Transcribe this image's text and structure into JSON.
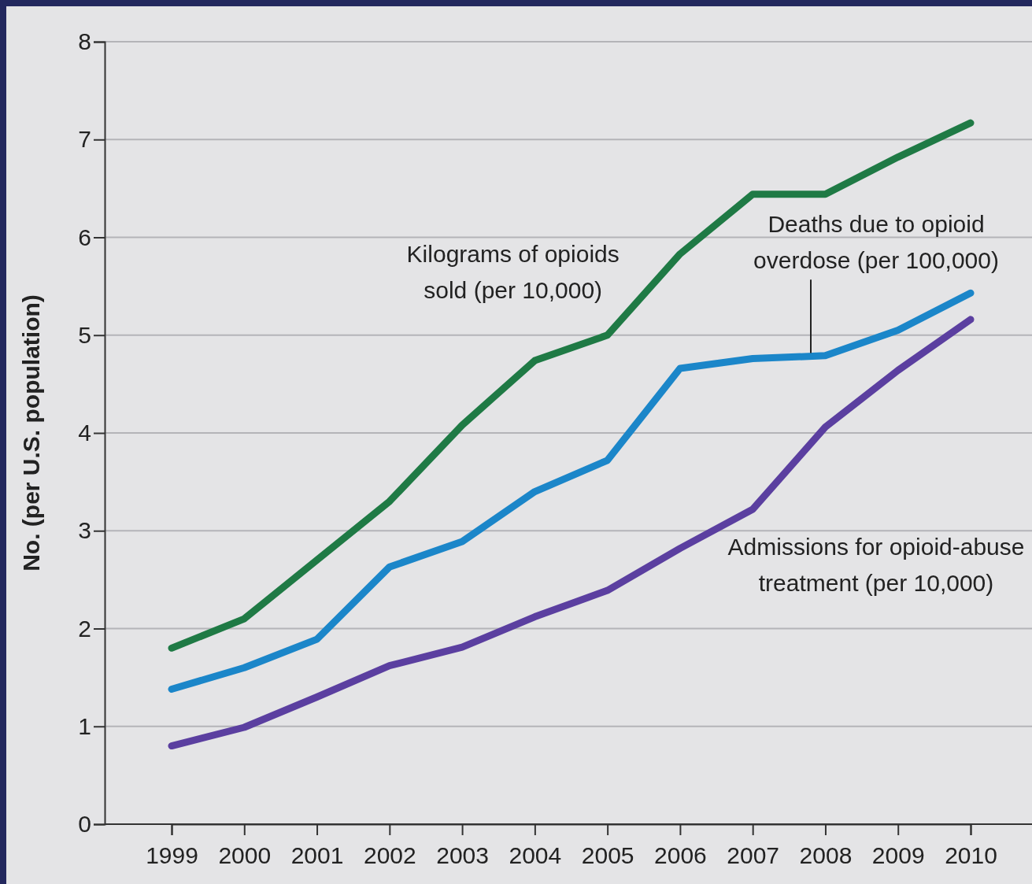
{
  "chart_data": {
    "type": "line",
    "ylabel": "No. (per U.S. population)",
    "categories": [
      "1999",
      "2000",
      "2001",
      "2002",
      "2003",
      "2004",
      "2005",
      "2006",
      "2007",
      "2008",
      "2009",
      "2010"
    ],
    "series": [
      {
        "name": "Kilograms of opioids sold (per 10,000)",
        "color": "#1f7a45",
        "values": [
          1.8,
          2.1,
          2.7,
          3.3,
          4.08,
          4.74,
          5.0,
          5.83,
          6.44,
          6.44,
          6.82,
          7.17
        ]
      },
      {
        "name": "Deaths due to opioid overdose (per 100,000)",
        "color": "#1b86c9",
        "values": [
          1.38,
          1.6,
          1.89,
          2.63,
          2.89,
          3.4,
          3.72,
          4.66,
          4.76,
          4.79,
          5.05,
          5.43
        ]
      },
      {
        "name": "Admissions for opioid-abuse treatment (per 10,000)",
        "color": "#5b3fa0",
        "values": [
          0.8,
          0.99,
          1.3,
          1.62,
          1.81,
          2.12,
          2.39,
          2.82,
          3.22,
          4.06,
          4.64,
          5.16
        ]
      }
    ],
    "ylim": [
      0,
      8
    ],
    "yticks": [
      0,
      1,
      2,
      3,
      4,
      5,
      6,
      7,
      8
    ],
    "grid": "y",
    "marker": "none",
    "line_style": "solid"
  }
}
